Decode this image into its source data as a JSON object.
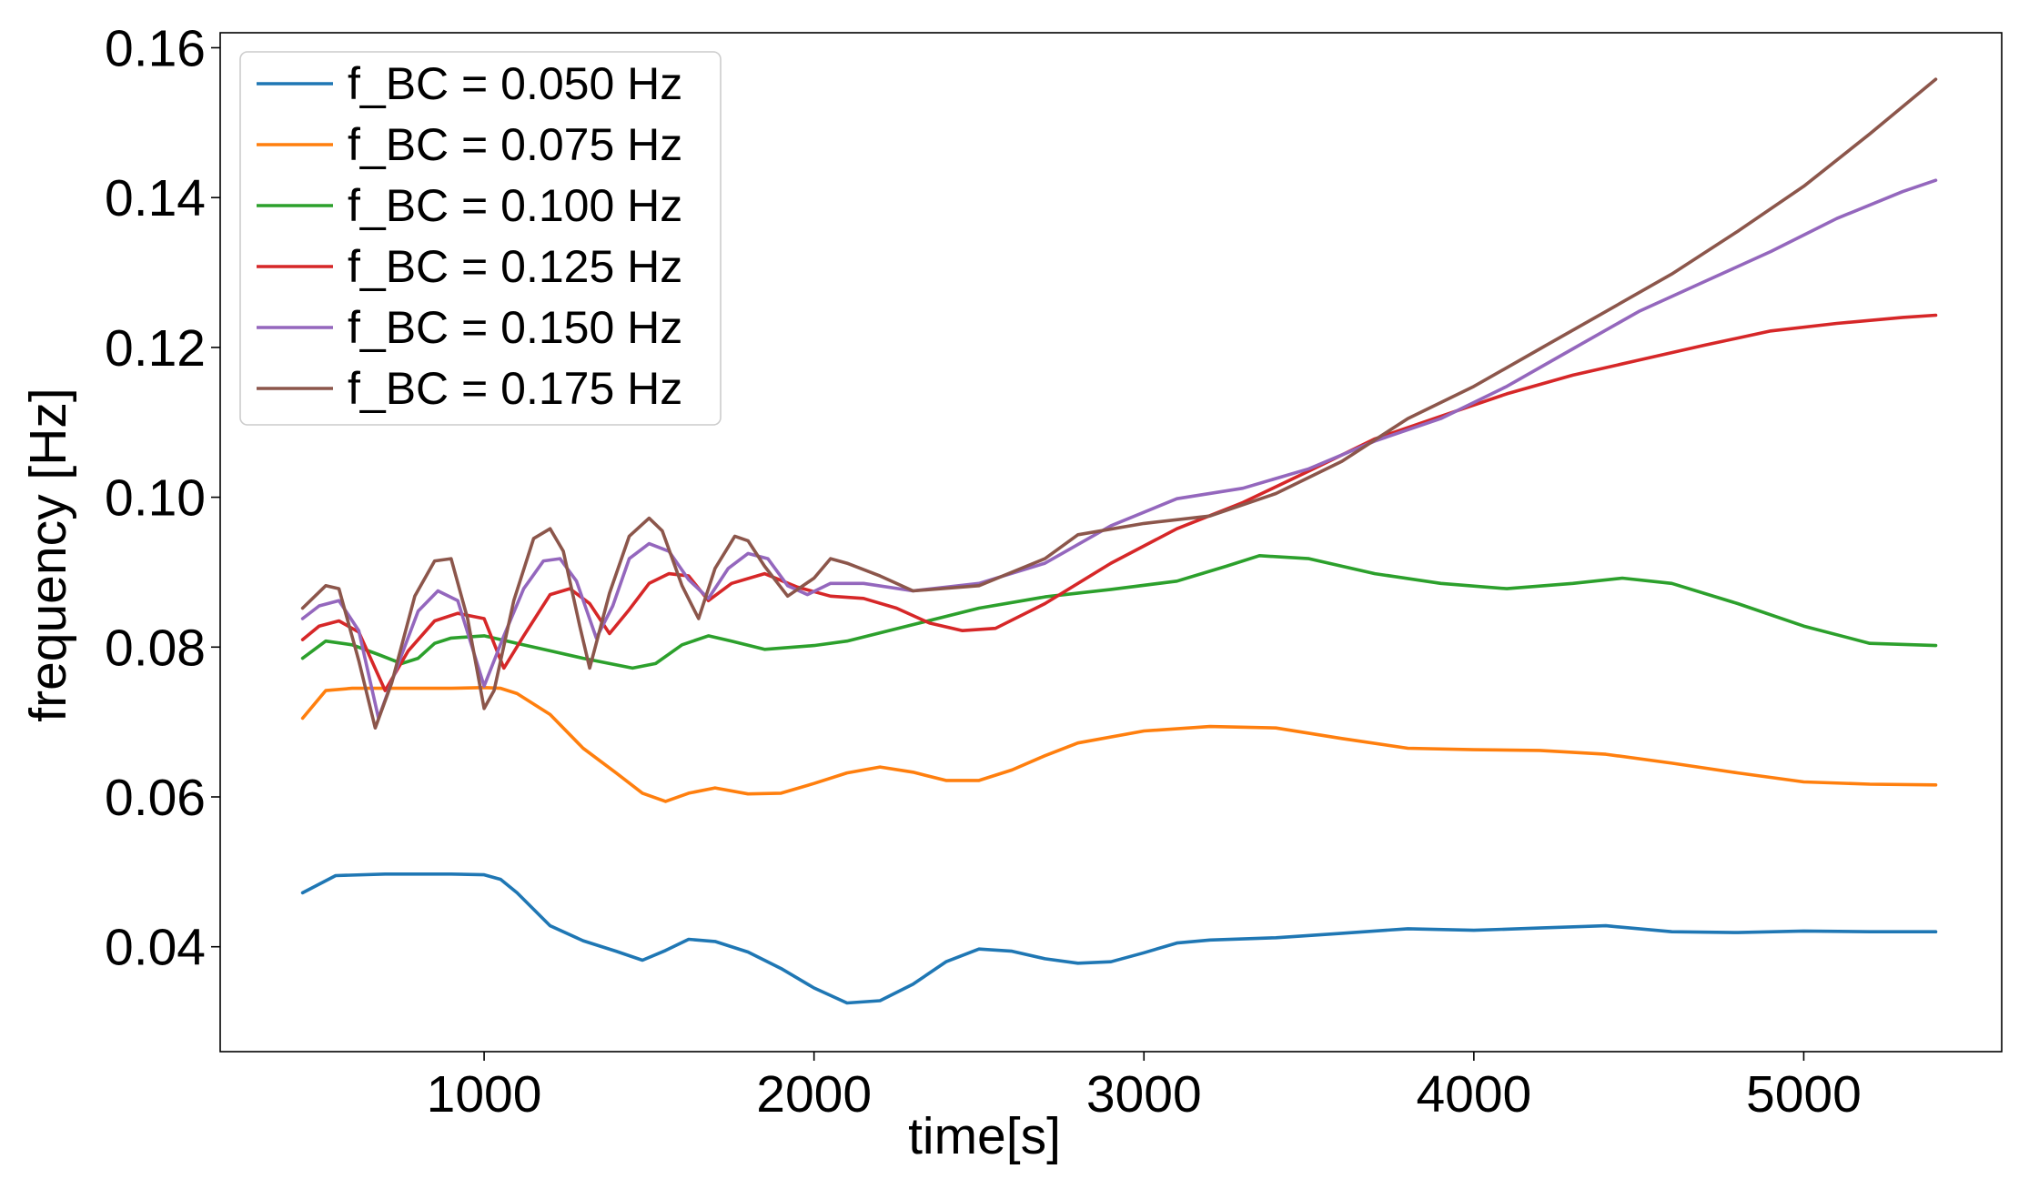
{
  "chart_data": {
    "type": "line",
    "title": "",
    "xlabel": "time[s]",
    "ylabel": "frequency [Hz]",
    "xlim": [
      200,
      5600
    ],
    "ylim": [
      0.026,
      0.162
    ],
    "xticks": [
      1000,
      2000,
      3000,
      4000,
      5000
    ],
    "xtick_labels": [
      "1000",
      "2000",
      "3000",
      "4000",
      "5000"
    ],
    "yticks": [
      0.04,
      0.06,
      0.08,
      0.1,
      0.12,
      0.14,
      0.16
    ],
    "ytick_labels": [
      "0.04",
      "0.06",
      "0.08",
      "0.10",
      "0.12",
      "0.14",
      "0.16"
    ],
    "grid": false,
    "legend_position": "top-left",
    "series": [
      {
        "name": "f_BC = 0.050 Hz",
        "color": "#1f77b4",
        "x": [
          450,
          550,
          700,
          900,
          1000,
          1050,
          1100,
          1200,
          1300,
          1400,
          1480,
          1550,
          1620,
          1700,
          1800,
          1900,
          2000,
          2100,
          2200,
          2300,
          2400,
          2500,
          2600,
          2700,
          2800,
          2900,
          3000,
          3100,
          3200,
          3400,
          3600,
          3800,
          4000,
          4200,
          4400,
          4600,
          4800,
          5000,
          5200,
          5400
        ],
        "y": [
          0.0472,
          0.0495,
          0.0497,
          0.0497,
          0.0496,
          0.049,
          0.0472,
          0.0428,
          0.0408,
          0.0394,
          0.0382,
          0.0395,
          0.041,
          0.0407,
          0.0393,
          0.0371,
          0.0345,
          0.0325,
          0.0328,
          0.035,
          0.038,
          0.0397,
          0.0394,
          0.0384,
          0.0378,
          0.038,
          0.0392,
          0.0405,
          0.0409,
          0.0412,
          0.0418,
          0.0424,
          0.0422,
          0.0425,
          0.0428,
          0.042,
          0.0419,
          0.0421,
          0.042,
          0.042
        ]
      },
      {
        "name": "f_BC = 0.075 Hz",
        "color": "#ff7f0e",
        "x": [
          450,
          520,
          600,
          700,
          800,
          900,
          1000,
          1050,
          1100,
          1200,
          1300,
          1400,
          1480,
          1550,
          1620,
          1700,
          1800,
          1900,
          2000,
          2100,
          2200,
          2300,
          2400,
          2500,
          2600,
          2700,
          2800,
          3000,
          3200,
          3400,
          3600,
          3800,
          4000,
          4200,
          4400,
          4600,
          4800,
          5000,
          5200,
          5400
        ],
        "y": [
          0.0705,
          0.0742,
          0.0745,
          0.0745,
          0.0745,
          0.0745,
          0.0746,
          0.0745,
          0.0738,
          0.071,
          0.0665,
          0.0632,
          0.0605,
          0.0594,
          0.0605,
          0.0612,
          0.0604,
          0.0605,
          0.0618,
          0.0632,
          0.064,
          0.0633,
          0.0622,
          0.0622,
          0.0636,
          0.0655,
          0.0672,
          0.0688,
          0.0694,
          0.0692,
          0.0678,
          0.0665,
          0.0663,
          0.0662,
          0.0657,
          0.0645,
          0.0632,
          0.062,
          0.0617,
          0.0616
        ]
      },
      {
        "name": "f_BC = 0.100 Hz",
        "color": "#2ca02c",
        "x": [
          450,
          520,
          600,
          680,
          750,
          800,
          850,
          900,
          1000,
          1100,
          1200,
          1300,
          1380,
          1450,
          1520,
          1600,
          1680,
          1750,
          1850,
          2000,
          2100,
          2300,
          2500,
          2700,
          2900,
          3100,
          3250,
          3350,
          3500,
          3700,
          3900,
          4100,
          4300,
          4450,
          4600,
          4800,
          5000,
          5200,
          5400
        ],
        "y": [
          0.0785,
          0.0808,
          0.0803,
          0.079,
          0.0778,
          0.0785,
          0.0805,
          0.0812,
          0.0815,
          0.0805,
          0.0795,
          0.0785,
          0.0778,
          0.0772,
          0.0778,
          0.0803,
          0.0815,
          0.0808,
          0.0797,
          0.0802,
          0.0808,
          0.083,
          0.0852,
          0.0867,
          0.0877,
          0.0888,
          0.0908,
          0.0922,
          0.0918,
          0.0898,
          0.0885,
          0.0878,
          0.0885,
          0.0892,
          0.0885,
          0.0858,
          0.0828,
          0.0805,
          0.0802
        ]
      },
      {
        "name": "f_BC = 0.125 Hz",
        "color": "#d62728",
        "x": [
          450,
          500,
          560,
          620,
          700,
          770,
          850,
          920,
          1000,
          1060,
          1120,
          1200,
          1260,
          1320,
          1380,
          1440,
          1500,
          1560,
          1620,
          1680,
          1750,
          1850,
          1950,
          2050,
          2150,
          2250,
          2350,
          2450,
          2550,
          2700,
          2900,
          3100,
          3300,
          3500,
          3700,
          3900,
          4100,
          4300,
          4500,
          4700,
          4900,
          5100,
          5300,
          5400
        ],
        "y": [
          0.081,
          0.0828,
          0.0835,
          0.082,
          0.0742,
          0.0795,
          0.0835,
          0.0845,
          0.0838,
          0.0772,
          0.0815,
          0.087,
          0.0878,
          0.0858,
          0.0818,
          0.085,
          0.0885,
          0.0898,
          0.0895,
          0.0862,
          0.0885,
          0.0898,
          0.088,
          0.0868,
          0.0865,
          0.0852,
          0.0832,
          0.0822,
          0.0825,
          0.0858,
          0.0912,
          0.0958,
          0.0993,
          0.1035,
          0.1078,
          0.1108,
          0.1138,
          0.1163,
          0.1183,
          0.1203,
          0.1222,
          0.1232,
          0.124,
          0.1243
        ]
      },
      {
        "name": "f_BC = 0.150 Hz",
        "color": "#9467bd",
        "x": [
          450,
          500,
          560,
          620,
          680,
          740,
          800,
          860,
          920,
          1000,
          1060,
          1120,
          1180,
          1230,
          1280,
          1340,
          1390,
          1440,
          1500,
          1560,
          1620,
          1680,
          1740,
          1800,
          1860,
          1920,
          1980,
          2050,
          2150,
          2300,
          2500,
          2700,
          2900,
          3100,
          3300,
          3500,
          3700,
          3900,
          4100,
          4300,
          4500,
          4700,
          4900,
          5100,
          5300,
          5400
        ],
        "y": [
          0.0838,
          0.0855,
          0.0862,
          0.0822,
          0.0705,
          0.0778,
          0.0848,
          0.0875,
          0.0862,
          0.0748,
          0.0815,
          0.0878,
          0.0915,
          0.0918,
          0.0888,
          0.0812,
          0.0855,
          0.0918,
          0.0938,
          0.0928,
          0.089,
          0.0865,
          0.0905,
          0.0925,
          0.0918,
          0.0882,
          0.087,
          0.0885,
          0.0885,
          0.0875,
          0.0885,
          0.0912,
          0.0962,
          0.0998,
          0.1012,
          0.1038,
          0.1075,
          0.1105,
          0.1148,
          0.1198,
          0.1248,
          0.1288,
          0.1328,
          0.1372,
          0.1408,
          0.1423
        ]
      },
      {
        "name": "f_BC = 0.175 Hz",
        "color": "#8c564b",
        "x": [
          450,
          520,
          560,
          620,
          670,
          720,
          790,
          850,
          900,
          950,
          1000,
          1030,
          1090,
          1150,
          1200,
          1240,
          1290,
          1320,
          1380,
          1440,
          1500,
          1540,
          1600,
          1650,
          1700,
          1760,
          1800,
          1850,
          1920,
          2000,
          2050,
          2100,
          2200,
          2300,
          2500,
          2700,
          2800,
          3000,
          3200,
          3400,
          3600,
          3800,
          4000,
          4200,
          4400,
          4600,
          4800,
          5000,
          5200,
          5400
        ],
        "y": [
          0.0852,
          0.0882,
          0.0878,
          0.0782,
          0.0692,
          0.0752,
          0.0868,
          0.0915,
          0.0918,
          0.0838,
          0.0718,
          0.0742,
          0.0862,
          0.0945,
          0.0958,
          0.0928,
          0.0828,
          0.0772,
          0.0872,
          0.0948,
          0.0972,
          0.0955,
          0.0882,
          0.0838,
          0.0905,
          0.0948,
          0.0942,
          0.0908,
          0.0868,
          0.0892,
          0.0918,
          0.0912,
          0.0895,
          0.0875,
          0.0882,
          0.0918,
          0.095,
          0.0965,
          0.0975,
          0.1005,
          0.1048,
          0.1105,
          0.1148,
          0.1198,
          0.1248,
          0.1298,
          0.1355,
          0.1415,
          0.1485,
          0.1558
        ]
      }
    ]
  }
}
